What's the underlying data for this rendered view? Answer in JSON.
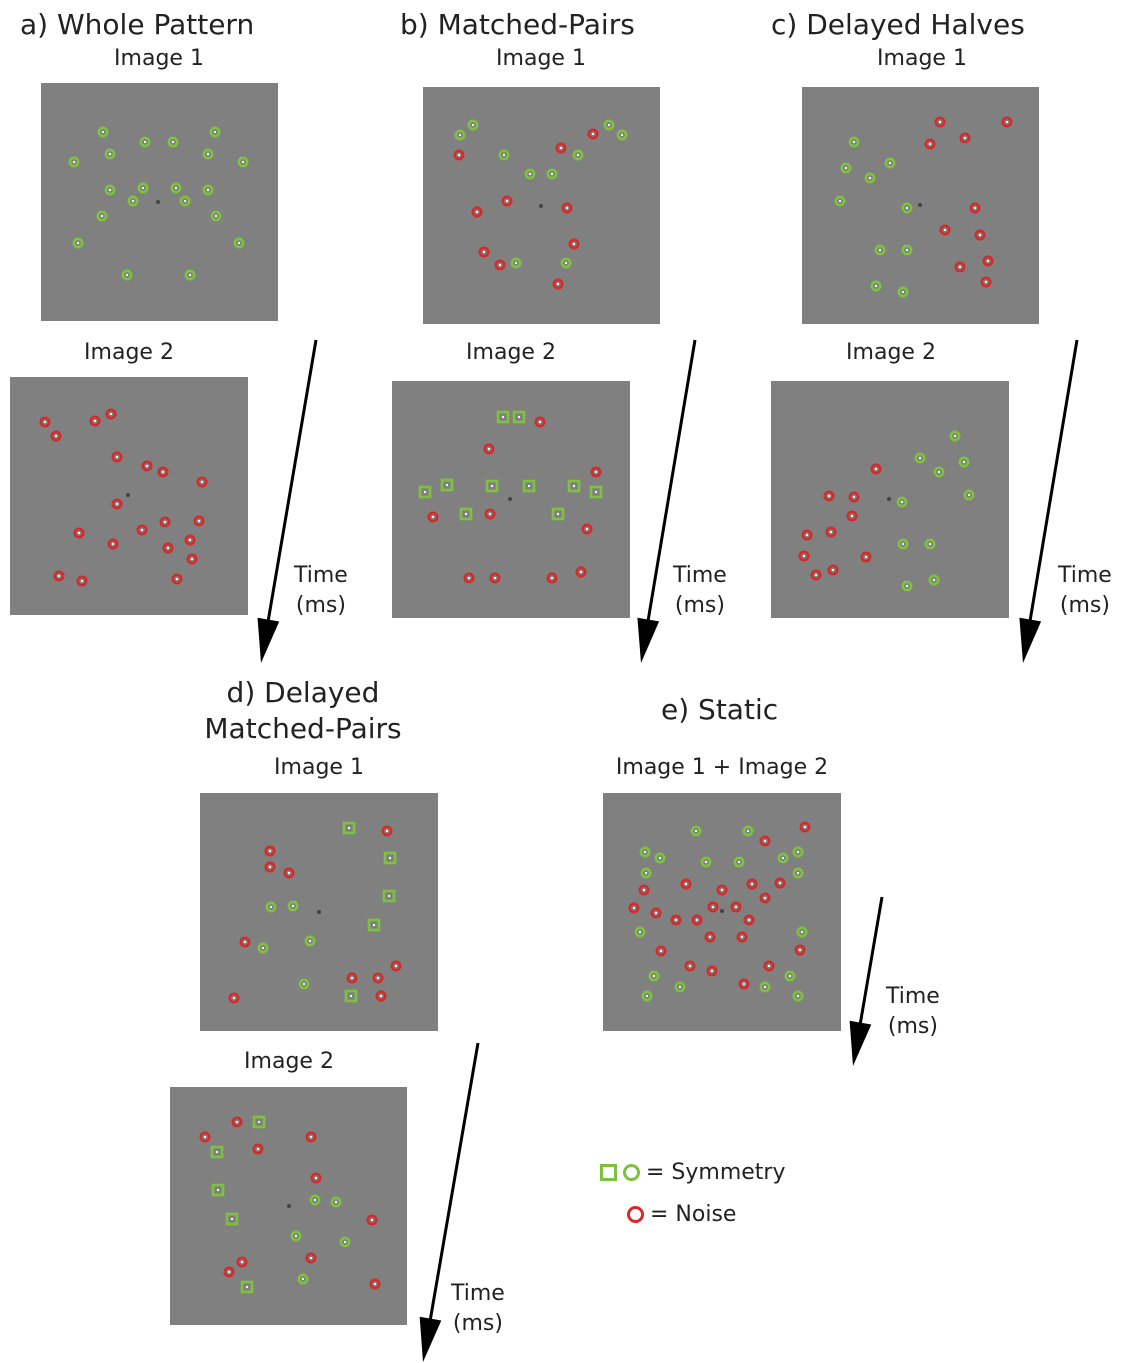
{
  "panels": [
    {
      "id": "a",
      "title": "a) Whole Pattern"
    },
    {
      "id": "b",
      "title": "b) Matched-Pairs"
    },
    {
      "id": "c",
      "title": "c) Delayed Halves"
    },
    {
      "id": "d",
      "title_line1": "d) Delayed",
      "title_line2": "Matched-Pairs"
    },
    {
      "id": "e",
      "title": "e) Static"
    }
  ],
  "labels": {
    "image1": "Image 1",
    "image2": "Image 2",
    "combined": "Image 1 + Image 2",
    "time_line1": "Time",
    "time_line2": "(ms)"
  },
  "legend": {
    "symmetry": "= Symmetry",
    "noise": "= Noise"
  },
  "colors": {
    "background": "#808080",
    "symmetry": "#7ec13e",
    "noise": "#d42a2a",
    "fixation": "#444444",
    "arrow": "#000000"
  }
}
